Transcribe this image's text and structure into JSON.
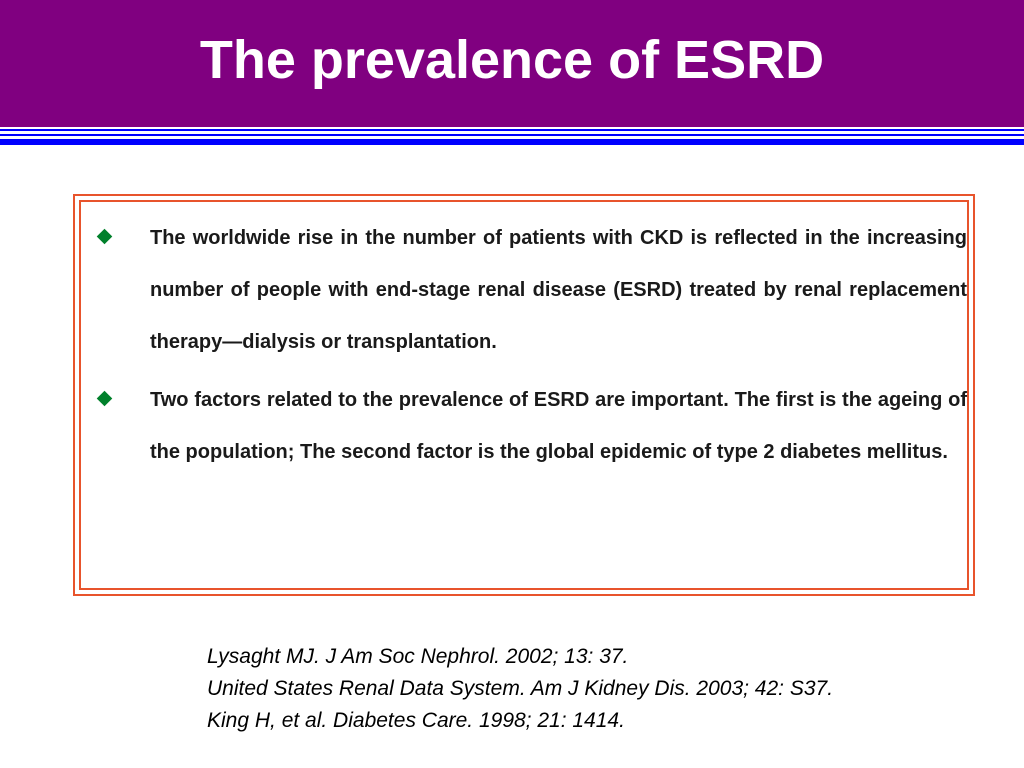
{
  "slide": {
    "title": "The prevalence of ESRD",
    "colors": {
      "title_background": "#800080",
      "title_text": "#ffffff",
      "rule": "#0000ff",
      "box_border": "#e8542c",
      "bullet": "#00802b"
    }
  },
  "bullets": [
    {
      "icon": "diamond-bullet-icon",
      "text": "The worldwide rise in the number of patients with CKD is reflected in the increasing number of people with end-stage renal disease (ESRD) treated by renal replacement therapy—dialysis or transplantation."
    },
    {
      "icon": "diamond-bullet-icon",
      "text": "Two factors related to the prevalence of ESRD are important. The first is the ageing of the population; The second factor is the global epidemic of type 2 diabetes mellitus."
    }
  ],
  "references": [
    "Lysaght MJ. J Am Soc Nephrol. 2002; 13: 37.",
    "United States Renal Data System. Am J Kidney Dis. 2003; 42: S37.",
    "King H, et al. Diabetes Care. 1998; 21: 1414."
  ]
}
